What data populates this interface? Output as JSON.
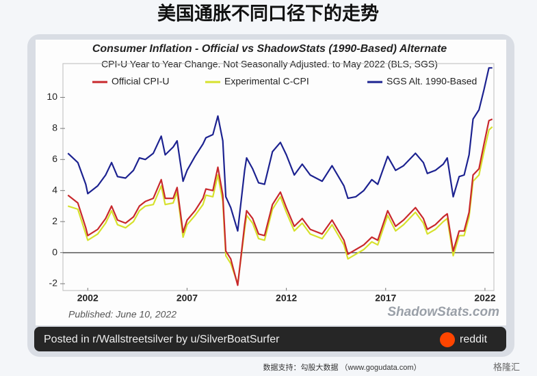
{
  "page": {
    "header": "美国通胀不同口径下的走势",
    "post": "Posted in r/Wallstreetsilver by u/SilverBoatSurfer",
    "site": "reddit",
    "footer": "数据支持：勾股大数据 （www.gogudata.com）",
    "watermark": "格隆汇"
  },
  "chart_data": {
    "type": "line",
    "title": "Consumer Inflation - Official vs ShadowStats (1990-Based) Alternate",
    "subtitle": "CPI-U Year to Year Change. Not Seasonally Adjusted. to May 2022 (BLS, SGS)",
    "published": "Published: June 10, 2022",
    "source": "ShadowStats.com",
    "x": [
      2001.0,
      2001.5,
      2001.9,
      2002.0,
      2002.5,
      2002.9,
      2003.2,
      2003.5,
      2003.9,
      2004.3,
      2004.6,
      2004.9,
      2005.3,
      2005.7,
      2005.9,
      2006.3,
      2006.5,
      2006.8,
      2007.0,
      2007.4,
      2007.8,
      2007.95,
      2008.3,
      2008.55,
      2008.8,
      2008.95,
      2009.2,
      2009.55,
      2009.9,
      2010.0,
      2010.3,
      2010.6,
      2010.9,
      2011.3,
      2011.7,
      2012.0,
      2012.4,
      2012.8,
      2013.2,
      2013.8,
      2014.3,
      2014.9,
      2015.1,
      2015.5,
      2015.9,
      2016.3,
      2016.6,
      2017.1,
      2017.5,
      2017.9,
      2018.5,
      2018.9,
      2019.1,
      2019.5,
      2019.9,
      2020.1,
      2020.4,
      2020.7,
      2020.95,
      2021.2,
      2021.4,
      2021.7,
      2021.95,
      2022.2,
      2022.37
    ],
    "series": [
      {
        "name": "Official CPI-U",
        "color": "#c8282c",
        "values": [
          3.7,
          3.2,
          1.6,
          1.1,
          1.5,
          2.2,
          3.0,
          2.1,
          1.9,
          2.3,
          3.0,
          3.3,
          3.5,
          4.7,
          3.5,
          3.5,
          4.2,
          1.3,
          2.1,
          2.7,
          3.5,
          4.1,
          4.0,
          5.5,
          3.7,
          0.1,
          -0.4,
          -2.1,
          1.8,
          2.7,
          2.2,
          1.2,
          1.1,
          3.1,
          3.9,
          2.9,
          1.7,
          2.2,
          1.5,
          1.2,
          2.1,
          0.8,
          -0.1,
          0.2,
          0.5,
          1.0,
          0.8,
          2.7,
          1.7,
          2.1,
          2.9,
          2.2,
          1.5,
          1.8,
          2.3,
          2.5,
          0.1,
          1.4,
          1.4,
          2.6,
          5.0,
          5.4,
          7.0,
          8.5,
          8.6
        ]
      },
      {
        "name": "Experimental C-CPI",
        "color": "#d6e12c",
        "values": [
          3.0,
          2.8,
          1.2,
          0.8,
          1.2,
          1.9,
          2.7,
          1.8,
          1.6,
          2.0,
          2.7,
          3.0,
          3.1,
          4.3,
          3.1,
          3.2,
          3.9,
          1.0,
          1.8,
          2.4,
          3.1,
          3.7,
          3.6,
          5.0,
          3.3,
          -0.2,
          -0.7,
          -2.0,
          1.5,
          2.4,
          1.9,
          0.9,
          0.8,
          2.8,
          3.6,
          2.6,
          1.4,
          1.9,
          1.2,
          0.9,
          1.8,
          0.5,
          -0.4,
          -0.1,
          0.2,
          0.7,
          0.5,
          2.4,
          1.4,
          1.8,
          2.6,
          1.9,
          1.2,
          1.5,
          2.0,
          2.2,
          -0.2,
          1.1,
          1.1,
          2.3,
          4.6,
          5.0,
          6.5,
          7.9,
          8.1
        ]
      },
      {
        "name": "SGS  Alt. 1990-Based",
        "color": "#1c2290",
        "values": [
          6.4,
          5.8,
          4.4,
          3.8,
          4.3,
          5.0,
          5.8,
          4.9,
          4.8,
          5.3,
          6.1,
          6.0,
          6.4,
          7.5,
          6.3,
          6.8,
          7.2,
          4.6,
          5.3,
          6.2,
          7.0,
          7.4,
          7.6,
          8.8,
          7.2,
          3.6,
          2.9,
          1.4,
          5.3,
          6.1,
          5.4,
          4.5,
          4.4,
          6.5,
          7.1,
          6.3,
          5.0,
          5.7,
          5.0,
          4.6,
          5.6,
          4.3,
          3.5,
          3.6,
          4.0,
          4.7,
          4.4,
          6.2,
          5.3,
          5.6,
          6.4,
          5.8,
          5.1,
          5.3,
          5.7,
          6.1,
          3.6,
          4.9,
          5.0,
          6.3,
          8.6,
          9.2,
          10.5,
          11.9,
          11.9
        ]
      }
    ],
    "xlim": [
      2000.75,
      2022.45
    ],
    "xticks": [
      2002,
      2007,
      2012,
      2017,
      2022
    ],
    "ylim": [
      -2,
      12
    ],
    "yticks": [
      -2,
      0,
      2,
      4,
      6,
      8,
      10
    ],
    "zero_line": true
  }
}
